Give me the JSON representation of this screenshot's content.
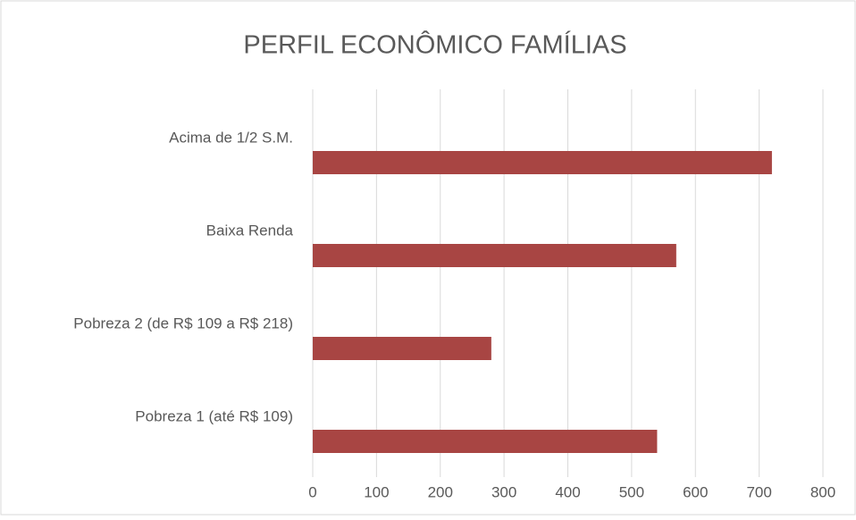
{
  "chart_data": {
    "type": "barh",
    "title": "PERFIL ECONÔMICO FAMÍLIAS",
    "categories": [
      "Acima de 1/2 S.M.",
      "Baixa Renda",
      "Pobreza 2 (de R$ 109 a R$ 218)",
      "Pobreza 1 (até R$ 109)"
    ],
    "values": [
      720,
      570,
      280,
      540
    ],
    "color": "#a84543",
    "xlim": [
      0,
      800
    ],
    "xticks": [
      0,
      100,
      200,
      300,
      400,
      500,
      600,
      700,
      800
    ],
    "grid": true
  }
}
